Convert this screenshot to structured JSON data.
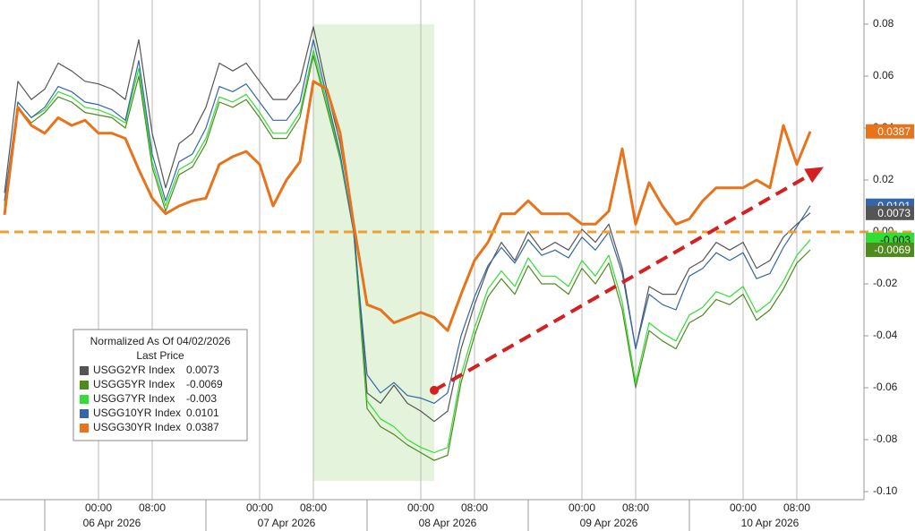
{
  "chart_data": {
    "type": "line",
    "legend": {
      "title": "Normalized As Of 04/02/2026",
      "subtitle": "Last Price",
      "position": "lower-left"
    },
    "x": [
      "2026-04-05 10:00",
      "2026-04-05 12:00",
      "2026-04-05 14:00",
      "2026-04-05 16:00",
      "2026-04-05 18:00",
      "2026-04-05 20:00",
      "2026-04-05 22:00",
      "2026-04-06 00:00",
      "2026-04-06 02:00",
      "2026-04-06 04:00",
      "2026-04-06 06:00",
      "2026-04-06 08:00",
      "2026-04-06 10:00",
      "2026-04-06 12:00",
      "2026-04-06 14:00",
      "2026-04-06 16:00",
      "2026-04-06 18:00",
      "2026-04-06 20:00",
      "2026-04-06 22:00",
      "2026-04-07 00:00",
      "2026-04-07 02:00",
      "2026-04-07 04:00",
      "2026-04-07 06:00",
      "2026-04-07 08:00",
      "2026-04-07 10:00",
      "2026-04-07 12:00",
      "2026-04-07 14:00",
      "2026-04-07 16:00",
      "2026-04-07 18:00",
      "2026-04-07 20:00",
      "2026-04-07 22:00",
      "2026-04-08 00:00",
      "2026-04-08 02:00",
      "2026-04-08 04:00",
      "2026-04-08 06:00",
      "2026-04-08 08:00",
      "2026-04-08 10:00",
      "2026-04-08 12:00",
      "2026-04-08 14:00",
      "2026-04-08 16:00",
      "2026-04-08 18:00",
      "2026-04-08 20:00",
      "2026-04-08 22:00",
      "2026-04-09 00:00",
      "2026-04-09 02:00",
      "2026-04-09 04:00",
      "2026-04-09 06:00",
      "2026-04-09 08:00",
      "2026-04-09 10:00",
      "2026-04-09 12:00",
      "2026-04-09 14:00",
      "2026-04-09 16:00",
      "2026-04-09 18:00",
      "2026-04-09 20:00",
      "2026-04-09 22:00",
      "2026-04-10 00:00",
      "2026-04-10 02:00",
      "2026-04-10 04:00",
      "2026-04-10 06:00",
      "2026-04-10 08:00",
      "2026-04-10 10:00"
    ],
    "series": [
      {
        "name": "USGG2YR Index",
        "color": "#555555",
        "values": [
          0.015,
          0.058,
          0.051,
          0.055,
          0.065,
          0.062,
          0.058,
          0.057,
          0.055,
          0.051,
          0.074,
          0.038,
          0.017,
          0.034,
          0.038,
          0.048,
          0.065,
          0.062,
          0.065,
          0.058,
          0.051,
          0.051,
          0.058,
          0.079,
          0.055,
          0.034,
          0.003,
          -0.062,
          -0.066,
          -0.059,
          -0.066,
          -0.069,
          -0.073,
          -0.069,
          -0.045,
          -0.028,
          -0.014,
          -0.004,
          -0.011,
          0.0,
          -0.007,
          -0.004,
          -0.007,
          0.001,
          -0.004,
          0.003,
          -0.014,
          -0.045,
          -0.021,
          -0.024,
          -0.024,
          -0.014,
          -0.011,
          -0.004,
          -0.007,
          -0.004,
          -0.014,
          -0.011,
          -0.002,
          0.003,
          0.0073
        ]
      },
      {
        "name": "USGG5YR Index",
        "color": "#4e8a1c",
        "values": [
          0.01,
          0.048,
          0.042,
          0.046,
          0.052,
          0.05,
          0.046,
          0.045,
          0.044,
          0.04,
          0.06,
          0.025,
          0.008,
          0.022,
          0.025,
          0.034,
          0.05,
          0.048,
          0.051,
          0.044,
          0.036,
          0.036,
          0.044,
          0.068,
          0.048,
          0.028,
          0.0,
          -0.068,
          -0.075,
          -0.078,
          -0.082,
          -0.085,
          -0.088,
          -0.086,
          -0.058,
          -0.04,
          -0.025,
          -0.018,
          -0.024,
          -0.013,
          -0.02,
          -0.02,
          -0.024,
          -0.014,
          -0.02,
          -0.012,
          -0.03,
          -0.06,
          -0.038,
          -0.042,
          -0.045,
          -0.035,
          -0.032,
          -0.026,
          -0.028,
          -0.024,
          -0.034,
          -0.03,
          -0.022,
          -0.012,
          -0.0069
        ]
      },
      {
        "name": "USGG7YR Index",
        "color": "#33dd33",
        "values": [
          0.011,
          0.05,
          0.044,
          0.047,
          0.054,
          0.052,
          0.048,
          0.047,
          0.045,
          0.042,
          0.063,
          0.027,
          0.01,
          0.024,
          0.027,
          0.036,
          0.052,
          0.05,
          0.053,
          0.046,
          0.038,
          0.038,
          0.046,
          0.07,
          0.05,
          0.029,
          0.0,
          -0.065,
          -0.072,
          -0.075,
          -0.08,
          -0.083,
          -0.085,
          -0.083,
          -0.055,
          -0.037,
          -0.022,
          -0.015,
          -0.021,
          -0.01,
          -0.017,
          -0.017,
          -0.021,
          -0.011,
          -0.017,
          -0.009,
          -0.027,
          -0.058,
          -0.035,
          -0.039,
          -0.042,
          -0.032,
          -0.029,
          -0.023,
          -0.025,
          -0.021,
          -0.031,
          -0.027,
          -0.019,
          -0.009,
          -0.003
        ]
      },
      {
        "name": "USGG10YR Index",
        "color": "#3366aa",
        "values": [
          0.012,
          0.05,
          0.044,
          0.048,
          0.056,
          0.054,
          0.05,
          0.049,
          0.047,
          0.043,
          0.066,
          0.03,
          0.012,
          0.027,
          0.03,
          0.04,
          0.056,
          0.054,
          0.057,
          0.05,
          0.043,
          0.043,
          0.05,
          0.074,
          0.052,
          0.03,
          0.0,
          -0.055,
          -0.062,
          -0.058,
          -0.063,
          -0.064,
          -0.066,
          -0.062,
          -0.04,
          -0.025,
          -0.013,
          -0.006,
          -0.012,
          -0.003,
          -0.009,
          -0.007,
          -0.01,
          -0.002,
          -0.007,
          0.0,
          -0.016,
          -0.045,
          -0.024,
          -0.028,
          -0.03,
          -0.017,
          -0.014,
          -0.008,
          -0.011,
          -0.008,
          -0.018,
          -0.016,
          -0.006,
          0.002,
          0.0101
        ]
      },
      {
        "name": "USGG30YR Index",
        "color": "#e8731a",
        "values": [
          0.0066,
          0.048,
          0.041,
          0.038,
          0.044,
          0.041,
          0.043,
          0.038,
          0.038,
          0.036,
          0.024,
          0.013,
          0.007,
          0.01,
          0.012,
          0.013,
          0.026,
          0.029,
          0.031,
          0.026,
          0.01,
          0.02,
          0.027,
          0.058,
          0.055,
          0.038,
          0.003,
          -0.028,
          -0.03,
          -0.035,
          -0.033,
          -0.031,
          -0.033,
          -0.038,
          -0.024,
          -0.011,
          -0.004,
          0.007,
          0.007,
          0.012,
          0.007,
          0.007,
          0.007,
          0.003,
          0.003,
          0.008,
          0.032,
          0.003,
          0.019,
          0.01,
          0.003,
          0.005,
          0.012,
          0.017,
          0.017,
          0.017,
          0.02,
          0.017,
          0.041,
          0.026,
          0.0387
        ]
      }
    ],
    "ylim": [
      -0.1,
      0.08
    ],
    "yticks": [
      0.08,
      0.06,
      0.04,
      0.02,
      {
        "value": 0,
        "label": "0.00"
      },
      -0.02,
      -0.04,
      -0.06,
      -0.08,
      {
        "value": -0.1,
        "label": "-0.10"
      }
    ],
    "xticks": [
      {
        "value": "2026-04-06 00:00",
        "label": "00:00"
      },
      {
        "value": "2026-04-06 08:00",
        "label": "08:00"
      },
      {
        "value": "2026-04-07 00:00",
        "label": "00:00"
      },
      {
        "value": "2026-04-07 08:00",
        "label": "08:00"
      },
      {
        "value": "2026-04-08 00:00",
        "label": "00:00"
      },
      {
        "value": "2026-04-08 08:00",
        "label": "08:00"
      },
      {
        "value": "2026-04-09 00:00",
        "label": "00:00"
      },
      {
        "value": "2026-04-09 08:00",
        "label": "08:00"
      },
      {
        "value": "2026-04-10 00:00",
        "label": "00:00"
      },
      {
        "value": "2026-04-10 08:00",
        "label": "08:00"
      }
    ],
    "date_labels": [
      {
        "value": "2026-04-06 02:00",
        "label": "06 Apr 2026"
      },
      {
        "value": "2026-04-07 04:00",
        "label": "07 Apr 2026"
      },
      {
        "value": "2026-04-08 04:00",
        "label": "08 Apr 2026"
      },
      {
        "value": "2026-04-09 04:00",
        "label": "09 Apr 2026"
      },
      {
        "value": "2026-04-10 04:00",
        "label": "10 Apr 2026"
      }
    ],
    "date_separators": [
      "2026-04-05 16:00",
      "2026-04-06 16:00",
      "2026-04-07 16:00",
      "2026-04-08 16:00",
      "2026-04-09 16:00"
    ],
    "shade": {
      "from": "2026-04-07 08:00",
      "to": "2026-04-08 02:00",
      "color": "#e3f3dc"
    },
    "hline": {
      "value": 0,
      "color": "#f0a030"
    },
    "arrow": {
      "from": [
        "2026-04-08 02:00",
        -0.061
      ],
      "to": [
        "2026-04-10 12:00",
        0.025
      ],
      "color": "#d42020"
    }
  }
}
